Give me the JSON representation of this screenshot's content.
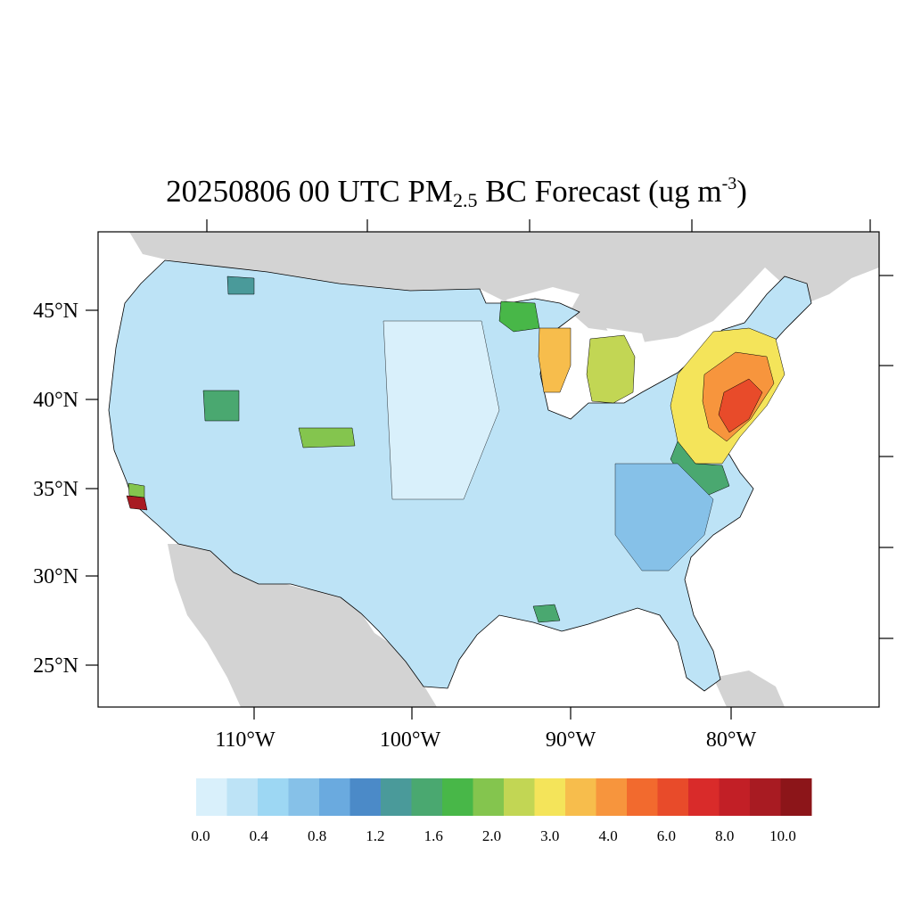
{
  "title": {
    "main_before": "20250806 00 UTC PM",
    "sub": "2.5",
    "main_after": " BC Forecast (ug m",
    "sup": "-3",
    "close": ")"
  },
  "lat_labels": [
    "45°N",
    "40°N",
    "35°N",
    "30°N",
    "25°N"
  ],
  "lon_labels": [
    "110°W",
    "100°W",
    "90°W",
    "80°W"
  ],
  "colorbar": {
    "colors": [
      "#d9f0fb",
      "#bde3f6",
      "#9dd7f3",
      "#86c1e8",
      "#6aaadf",
      "#4b8ac8",
      "#4a9a9a",
      "#4aa870",
      "#48b748",
      "#84c54e",
      "#c2d654",
      "#f4e45a",
      "#f7bd4c",
      "#f7953d",
      "#f26a2e",
      "#e84b2a",
      "#d92b2a",
      "#c21f26",
      "#a81b22",
      "#8c1519"
    ],
    "labels": [
      "0.0",
      "0.4",
      "0.8",
      "1.2",
      "1.6",
      "2.0",
      "3.0",
      "4.0",
      "6.0",
      "8.0",
      "10.0"
    ]
  },
  "colors": {
    "land_other": "#d3d3d3",
    "water": "#ffffff",
    "border": "#000000"
  }
}
